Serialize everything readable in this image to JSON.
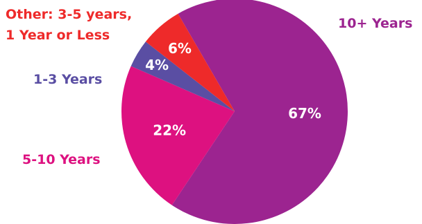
{
  "chart_data": {
    "type": "pie",
    "slices": [
      {
        "name": "10+ Years",
        "value": 67,
        "label": "67%",
        "color": "#9c2490"
      },
      {
        "name": "5-10 Years",
        "value": 22,
        "label": "22%",
        "color": "#dd1180"
      },
      {
        "name": "1-3 Years",
        "value": 4,
        "label": "4%",
        "color": "#5a4ea3"
      },
      {
        "name": "Other: 3-5 years, 1 Year or Less",
        "value": 6,
        "label": "6%",
        "color": "#ee2a2a"
      }
    ],
    "category_labels": {
      "ten_plus": "10+ Years",
      "five_ten": "5-10 Years",
      "one_three": "1-3 Years",
      "other_line1": "Other: 3-5 years,",
      "other_line2": "1 Year or Less"
    }
  }
}
